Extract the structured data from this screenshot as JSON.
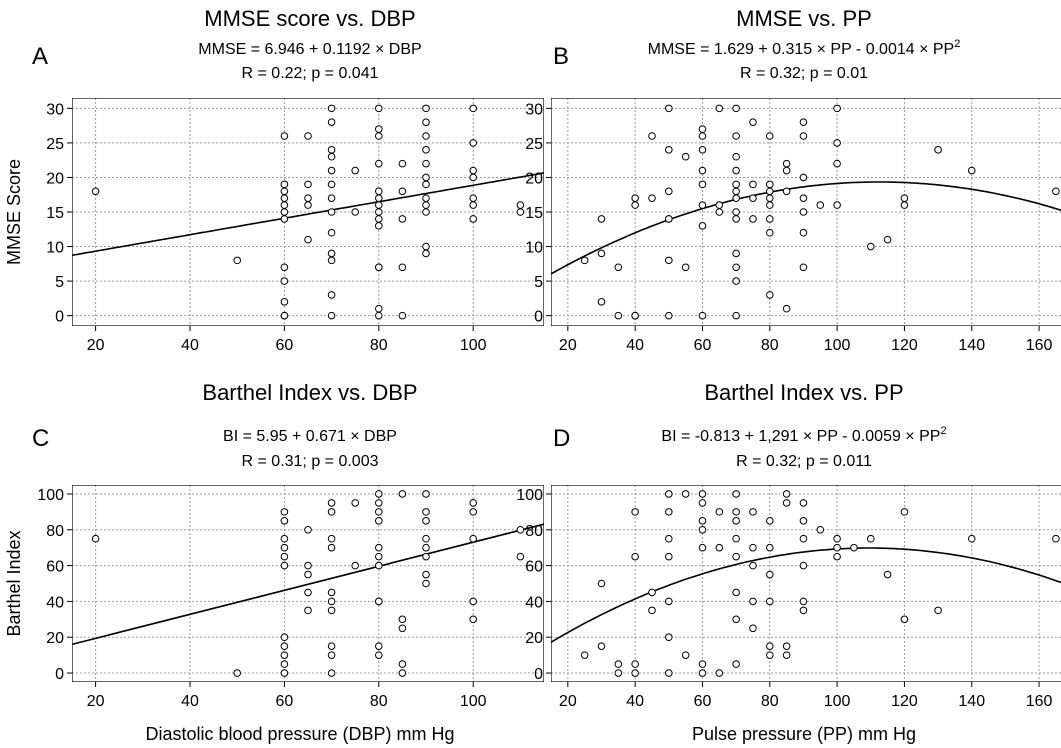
{
  "chart_data": [
    {
      "type": "scatter",
      "panel_letter": "A",
      "title": "MMSE score vs. DBP",
      "equation": "MMSE = 6.946 + 0.1192 × DBP",
      "stats": "R = 0.22; p = 0.041",
      "ylabel": "MMSE Score",
      "xlabel": "",
      "xlim": [
        15,
        115
      ],
      "ylim": [
        -1.5,
        31.5
      ],
      "xticks": [
        20,
        40,
        60,
        80,
        100
      ],
      "yticks": [
        0,
        5,
        10,
        15,
        20,
        25,
        30
      ],
      "fit": {
        "kind": "linear",
        "coef": [
          6.946,
          0.1192
        ]
      },
      "points": [
        [
          20,
          18
        ],
        [
          50,
          8
        ],
        [
          60,
          0
        ],
        [
          60,
          0
        ],
        [
          60,
          2
        ],
        [
          60,
          5
        ],
        [
          60,
          7
        ],
        [
          60,
          14
        ],
        [
          60,
          15
        ],
        [
          60,
          16
        ],
        [
          60,
          17
        ],
        [
          60,
          18
        ],
        [
          60,
          19
        ],
        [
          60,
          26
        ],
        [
          65,
          11
        ],
        [
          65,
          16
        ],
        [
          65,
          17
        ],
        [
          65,
          19
        ],
        [
          65,
          26
        ],
        [
          70,
          0
        ],
        [
          70,
          3
        ],
        [
          70,
          8
        ],
        [
          70,
          9
        ],
        [
          70,
          12
        ],
        [
          70,
          15
        ],
        [
          70,
          17
        ],
        [
          70,
          19
        ],
        [
          70,
          21
        ],
        [
          70,
          23
        ],
        [
          70,
          24
        ],
        [
          70,
          28
        ],
        [
          70,
          30
        ],
        [
          75,
          15
        ],
        [
          75,
          21
        ],
        [
          80,
          0
        ],
        [
          80,
          1
        ],
        [
          80,
          7
        ],
        [
          80,
          7
        ],
        [
          80,
          13
        ],
        [
          80,
          14
        ],
        [
          80,
          15
        ],
        [
          80,
          16
        ],
        [
          80,
          17
        ],
        [
          80,
          18
        ],
        [
          80,
          22
        ],
        [
          80,
          26
        ],
        [
          80,
          27
        ],
        [
          80,
          30
        ],
        [
          85,
          0
        ],
        [
          85,
          7
        ],
        [
          85,
          14
        ],
        [
          85,
          18
        ],
        [
          85,
          22
        ],
        [
          90,
          9
        ],
        [
          90,
          10
        ],
        [
          90,
          15
        ],
        [
          90,
          16
        ],
        [
          90,
          17
        ],
        [
          90,
          19
        ],
        [
          90,
          20
        ],
        [
          90,
          22
        ],
        [
          90,
          24
        ],
        [
          90,
          26
        ],
        [
          90,
          28
        ],
        [
          90,
          30
        ],
        [
          100,
          14
        ],
        [
          100,
          16
        ],
        [
          100,
          17
        ],
        [
          100,
          20
        ],
        [
          100,
          21
        ],
        [
          100,
          25
        ],
        [
          100,
          30
        ],
        [
          110,
          15
        ],
        [
          110,
          16
        ]
      ]
    },
    {
      "type": "scatter",
      "panel_letter": "B",
      "title": "MMSE vs. PP",
      "equation": "MMSE = 1.629 + 0.315 × PP - 0.0014 × PP",
      "equation_sup": "2",
      "stats": "R = 0.32; p = 0.01",
      "ylabel": "",
      "xlabel": "",
      "xlim": [
        15,
        168
      ],
      "ylim": [
        -1.5,
        31.5
      ],
      "xticks": [
        20,
        40,
        60,
        80,
        100,
        120,
        140,
        160
      ],
      "yticks": [
        0,
        5,
        10,
        15,
        20,
        25,
        30
      ],
      "fit": {
        "kind": "quadratic",
        "coef": [
          1.629,
          0.315,
          -0.0014
        ]
      },
      "points": [
        [
          25,
          8
        ],
        [
          30,
          2
        ],
        [
          30,
          9
        ],
        [
          30,
          14
        ],
        [
          35,
          0
        ],
        [
          35,
          7
        ],
        [
          40,
          0
        ],
        [
          40,
          0
        ],
        [
          40,
          16
        ],
        [
          40,
          17
        ],
        [
          45,
          17
        ],
        [
          45,
          26
        ],
        [
          50,
          0
        ],
        [
          50,
          8
        ],
        [
          50,
          14
        ],
        [
          50,
          14
        ],
        [
          50,
          18
        ],
        [
          50,
          24
        ],
        [
          50,
          30
        ],
        [
          55,
          7
        ],
        [
          55,
          23
        ],
        [
          60,
          0
        ],
        [
          60,
          13
        ],
        [
          60,
          16
        ],
        [
          60,
          19
        ],
        [
          60,
          21
        ],
        [
          60,
          24
        ],
        [
          60,
          26
        ],
        [
          60,
          27
        ],
        [
          65,
          15
        ],
        [
          65,
          16
        ],
        [
          65,
          30
        ],
        [
          70,
          0
        ],
        [
          70,
          5
        ],
        [
          70,
          7
        ],
        [
          70,
          9
        ],
        [
          70,
          14
        ],
        [
          70,
          15
        ],
        [
          70,
          17
        ],
        [
          70,
          18
        ],
        [
          70,
          19
        ],
        [
          70,
          21
        ],
        [
          70,
          23
        ],
        [
          70,
          26
        ],
        [
          70,
          30
        ],
        [
          75,
          14
        ],
        [
          75,
          17
        ],
        [
          75,
          19
        ],
        [
          75,
          28
        ],
        [
          80,
          3
        ],
        [
          80,
          12
        ],
        [
          80,
          14
        ],
        [
          80,
          16
        ],
        [
          80,
          17
        ],
        [
          80,
          18
        ],
        [
          80,
          19
        ],
        [
          80,
          26
        ],
        [
          85,
          1
        ],
        [
          85,
          18
        ],
        [
          85,
          21
        ],
        [
          85,
          22
        ],
        [
          90,
          7
        ],
        [
          90,
          12
        ],
        [
          90,
          15
        ],
        [
          90,
          17
        ],
        [
          90,
          20
        ],
        [
          90,
          26
        ],
        [
          90,
          28
        ],
        [
          95,
          16
        ],
        [
          100,
          16
        ],
        [
          100,
          22
        ],
        [
          100,
          25
        ],
        [
          100,
          30
        ],
        [
          110,
          10
        ],
        [
          115,
          11
        ],
        [
          120,
          16
        ],
        [
          120,
          17
        ],
        [
          130,
          24
        ],
        [
          140,
          21
        ],
        [
          165,
          18
        ]
      ]
    },
    {
      "type": "scatter",
      "panel_letter": "C",
      "title": "Barthel Index vs. DBP",
      "equation": "BI = 5.95 + 0.671 × DBP",
      "stats": "R = 0.31; p = 0.003",
      "ylabel": "Barthel Index",
      "xlabel": "Diastolic blood pressure (DBP) mm Hg",
      "xlim": [
        15,
        115
      ],
      "ylim": [
        -5,
        105
      ],
      "xticks": [
        20,
        40,
        60,
        80,
        100
      ],
      "yticks": [
        0,
        20,
        40,
        60,
        80,
        100
      ],
      "fit": {
        "kind": "linear",
        "coef": [
          5.95,
          0.671
        ]
      },
      "points": [
        [
          20,
          75
        ],
        [
          50,
          0
        ],
        [
          60,
          0
        ],
        [
          60,
          5
        ],
        [
          60,
          10
        ],
        [
          60,
          15
        ],
        [
          60,
          20
        ],
        [
          60,
          60
        ],
        [
          60,
          65
        ],
        [
          60,
          70
        ],
        [
          60,
          75
        ],
        [
          60,
          85
        ],
        [
          60,
          90
        ],
        [
          65,
          35
        ],
        [
          65,
          45
        ],
        [
          65,
          55
        ],
        [
          65,
          60
        ],
        [
          65,
          80
        ],
        [
          70,
          0
        ],
        [
          70,
          10
        ],
        [
          70,
          15
        ],
        [
          70,
          35
        ],
        [
          70,
          40
        ],
        [
          70,
          45
        ],
        [
          70,
          70
        ],
        [
          70,
          75
        ],
        [
          70,
          90
        ],
        [
          70,
          95
        ],
        [
          75,
          60
        ],
        [
          75,
          95
        ],
        [
          80,
          10
        ],
        [
          80,
          15
        ],
        [
          80,
          40
        ],
        [
          80,
          40
        ],
        [
          80,
          60
        ],
        [
          80,
          65
        ],
        [
          80,
          70
        ],
        [
          80,
          85
        ],
        [
          80,
          90
        ],
        [
          80,
          95
        ],
        [
          80,
          100
        ],
        [
          85,
          0
        ],
        [
          85,
          5
        ],
        [
          85,
          25
        ],
        [
          85,
          30
        ],
        [
          85,
          100
        ],
        [
          90,
          50
        ],
        [
          90,
          55
        ],
        [
          90,
          65
        ],
        [
          90,
          70
        ],
        [
          90,
          75
        ],
        [
          90,
          85
        ],
        [
          90,
          90
        ],
        [
          90,
          100
        ],
        [
          100,
          30
        ],
        [
          100,
          40
        ],
        [
          100,
          75
        ],
        [
          100,
          90
        ],
        [
          100,
          95
        ],
        [
          110,
          65
        ],
        [
          110,
          80
        ]
      ]
    },
    {
      "type": "scatter",
      "panel_letter": "D",
      "title": "Barthel Index vs. PP",
      "equation": "BI = -0.813 + 1,291 × PP - 0.0059 × PP",
      "equation_sup": "2",
      "stats": "R = 0.32; p = 0.011",
      "ylabel": "",
      "xlabel": "Pulse pressure (PP) mm Hg",
      "xlim": [
        15,
        168
      ],
      "ylim": [
        -5,
        105
      ],
      "xticks": [
        20,
        40,
        60,
        80,
        100,
        120,
        140,
        160
      ],
      "yticks": [
        0,
        20,
        40,
        60,
        80,
        100
      ],
      "fit": {
        "kind": "quadratic",
        "coef": [
          -0.813,
          1.291,
          -0.0059
        ]
      },
      "points": [
        [
          25,
          10
        ],
        [
          30,
          15
        ],
        [
          30,
          50
        ],
        [
          35,
          0
        ],
        [
          35,
          5
        ],
        [
          40,
          0
        ],
        [
          40,
          5
        ],
        [
          40,
          65
        ],
        [
          40,
          90
        ],
        [
          45,
          35
        ],
        [
          45,
          45
        ],
        [
          50,
          0
        ],
        [
          50,
          20
        ],
        [
          50,
          40
        ],
        [
          50,
          65
        ],
        [
          50,
          75
        ],
        [
          50,
          90
        ],
        [
          50,
          100
        ],
        [
          55,
          10
        ],
        [
          55,
          100
        ],
        [
          60,
          0
        ],
        [
          60,
          5
        ],
        [
          60,
          70
        ],
        [
          60,
          80
        ],
        [
          60,
          85
        ],
        [
          60,
          95
        ],
        [
          60,
          100
        ],
        [
          65,
          0
        ],
        [
          65,
          70
        ],
        [
          65,
          90
        ],
        [
          70,
          5
        ],
        [
          70,
          30
        ],
        [
          70,
          45
        ],
        [
          70,
          65
        ],
        [
          70,
          75
        ],
        [
          70,
          85
        ],
        [
          70,
          90
        ],
        [
          70,
          100
        ],
        [
          75,
          25
        ],
        [
          75,
          40
        ],
        [
          75,
          60
        ],
        [
          75,
          70
        ],
        [
          75,
          90
        ],
        [
          80,
          10
        ],
        [
          80,
          15
        ],
        [
          80,
          40
        ],
        [
          80,
          55
        ],
        [
          80,
          70
        ],
        [
          80,
          85
        ],
        [
          85,
          10
        ],
        [
          85,
          15
        ],
        [
          85,
          95
        ],
        [
          85,
          100
        ],
        [
          90,
          35
        ],
        [
          90,
          40
        ],
        [
          90,
          60
        ],
        [
          90,
          75
        ],
        [
          90,
          85
        ],
        [
          90,
          95
        ],
        [
          95,
          80
        ],
        [
          100,
          65
        ],
        [
          100,
          70
        ],
        [
          100,
          75
        ],
        [
          105,
          70
        ],
        [
          110,
          75
        ],
        [
          115,
          55
        ],
        [
          120,
          30
        ],
        [
          120,
          90
        ],
        [
          130,
          35
        ],
        [
          140,
          75
        ],
        [
          165,
          75
        ]
      ]
    }
  ]
}
